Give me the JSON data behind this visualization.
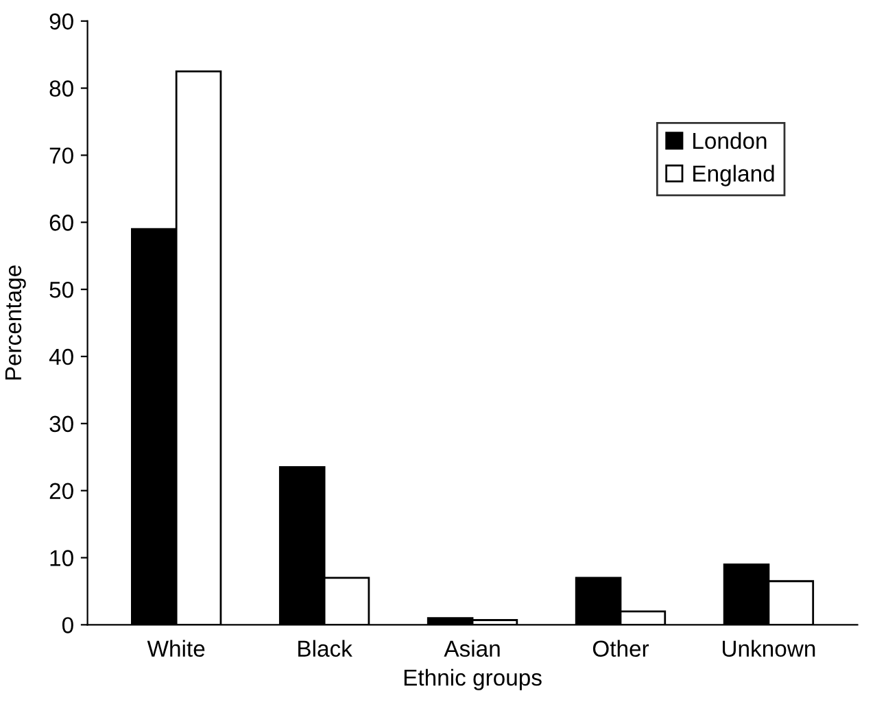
{
  "chart_data": {
    "type": "bar",
    "xlabel": "Ethnic groups",
    "ylabel": "Percentage",
    "categories": [
      "White",
      "Black",
      "Asian",
      "Other",
      "Unknown"
    ],
    "series": [
      {
        "name": "London",
        "color": "#000000",
        "values": [
          59,
          23.5,
          1,
          7,
          9
        ]
      },
      {
        "name": "England",
        "color": "#ffffff",
        "values": [
          82.5,
          7,
          0.7,
          2,
          6.5
        ]
      }
    ],
    "ylim": [
      0,
      90
    ],
    "yticks": [
      0,
      10,
      20,
      30,
      40,
      50,
      60,
      70,
      80,
      90
    ],
    "grid": false,
    "legend": "top right"
  }
}
